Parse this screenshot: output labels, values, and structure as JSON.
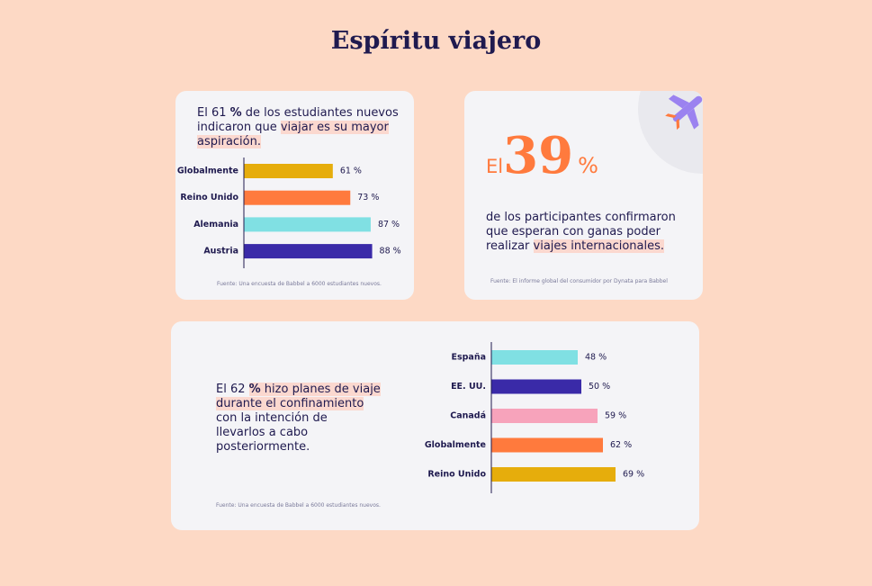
{
  "title": "Espíritu viajero",
  "card1": {
    "text": [
      "El 61 ",
      "%",
      " de los estudiantes nuevos",
      "indicaron que ",
      "viajar es su mayor",
      "aspiración."
    ],
    "source": "Fuente: Una encuesta de Babbel a 6000 estudiantes nuevos."
  },
  "card2": {
    "lead": "El",
    "number": "39",
    "unit": "%",
    "text": [
      "de los participantes confirmaron",
      "que esperan con ganas poder",
      "realizar ",
      "viajes internacionales."
    ],
    "source": "Fuente: El informe global del consumidor por Dynata para Babbel"
  },
  "card3": {
    "text": [
      "El 62 ",
      "%",
      " hizo planes de viaje",
      "durante el confinamiento",
      "con la intención de",
      "llevarlos a cabo",
      "posteriormente."
    ],
    "source": "Fuente: Una encuesta de Babbel a 6000 estudiantes nuevos."
  },
  "chart_data": [
    {
      "type": "bar",
      "orientation": "horizontal",
      "categories": [
        "Globalmente",
        "Reino Unido",
        "Alemania",
        "Austria"
      ],
      "values": [
        61,
        73,
        87,
        88
      ],
      "value_labels": [
        "61 %",
        "73 %",
        "87 %",
        "88 %"
      ],
      "colors": [
        "#e6ad0c",
        "#ff7a3d",
        "#80e0e3",
        "#3a2aa8"
      ]
    },
    {
      "type": "bar",
      "orientation": "horizontal",
      "categories": [
        "España",
        "EE. UU.",
        "Canadá",
        "Globalmente",
        "Reino Unido"
      ],
      "values": [
        48,
        50,
        59,
        62,
        69
      ],
      "value_labels": [
        "48 %",
        "50 %",
        "59 %",
        "62 %",
        "69 %"
      ],
      "colors": [
        "#80e0e3",
        "#3a2aa8",
        "#f7a3bb",
        "#ff7a3d",
        "#e6ad0c"
      ]
    }
  ]
}
